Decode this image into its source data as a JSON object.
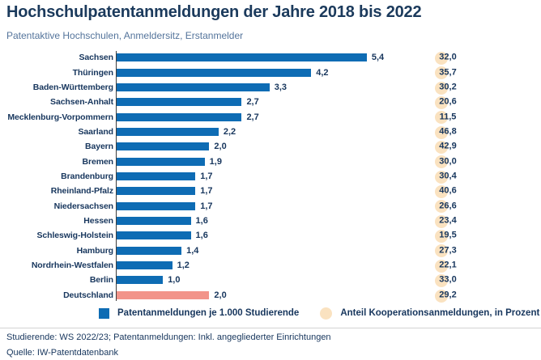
{
  "header": {
    "title": "Hochschulpatentanmeldungen der Jahre 2018 bis 2022",
    "subtitle": "Patentaktive Hochschulen, Anmeldersitz, Erstanmelder"
  },
  "chart_data": {
    "type": "bar",
    "orientation": "horizontal",
    "categories": [
      "Sachsen",
      "Thüringen",
      "Baden-Württemberg",
      "Sachsen-Anhalt",
      "Mecklenburg-Vorpommern",
      "Saarland",
      "Bayern",
      "Bremen",
      "Brandenburg",
      "Rheinland-Pfalz",
      "Niedersachsen",
      "Hessen",
      "Schleswig-Holstein",
      "Hamburg",
      "Nordrhein-Westfalen",
      "Berlin",
      "Deutschland"
    ],
    "series": [
      {
        "name": "Patentanmeldungen je 1.000 Studierende",
        "values": [
          5.4,
          4.2,
          3.3,
          2.7,
          2.7,
          2.2,
          2.0,
          1.9,
          1.7,
          1.7,
          1.7,
          1.6,
          1.6,
          1.4,
          1.2,
          1.0,
          2.0
        ],
        "value_labels": [
          "5,4",
          "4,2",
          "3,3",
          "2,7",
          "2,7",
          "2,2",
          "2,0",
          "1,9",
          "1,7",
          "1,7",
          "1,7",
          "1,6",
          "1,6",
          "1,4",
          "1,2",
          "1,0",
          "2,0"
        ]
      },
      {
        "name": "Anteil Kooperationsanmeldungen, in Prozent",
        "values": [
          32.0,
          35.7,
          30.2,
          20.6,
          11.5,
          46.8,
          42.9,
          30.0,
          30.4,
          40.6,
          26.6,
          23.4,
          19.5,
          27.3,
          22.1,
          33.0,
          29.2
        ],
        "value_labels": [
          "32,0",
          "35,7",
          "30,2",
          "20,6",
          "11,5",
          "46,8",
          "42,9",
          "30,0",
          "30,4",
          "40,6",
          "26,6",
          "23,4",
          "19,5",
          "27,3",
          "22,1",
          "33,0",
          "29,2"
        ]
      }
    ],
    "highlight_category": "Deutschland",
    "xlim": [
      0,
      5.8
    ],
    "grid": false,
    "legend_position": "bottom",
    "colors": {
      "bar": "#0E6CB4",
      "highlight_bar": "#F2948A",
      "coop_circle": "#FAE2C0",
      "text": "#17365D"
    }
  },
  "legend": {
    "items": [
      {
        "label": "Patentanmeldungen je 1.000 Studierende",
        "swatch": "blue-square"
      },
      {
        "label": "Anteil Kooperationsanmeldungen, in Prozent",
        "swatch": "peach-circle"
      }
    ]
  },
  "footer": {
    "note": "Studierende: WS 2022/23; Patentanmeldungen: Inkl. angegliederter Einrichtungen",
    "source": "Quelle: IW-Patentdatenbank"
  }
}
